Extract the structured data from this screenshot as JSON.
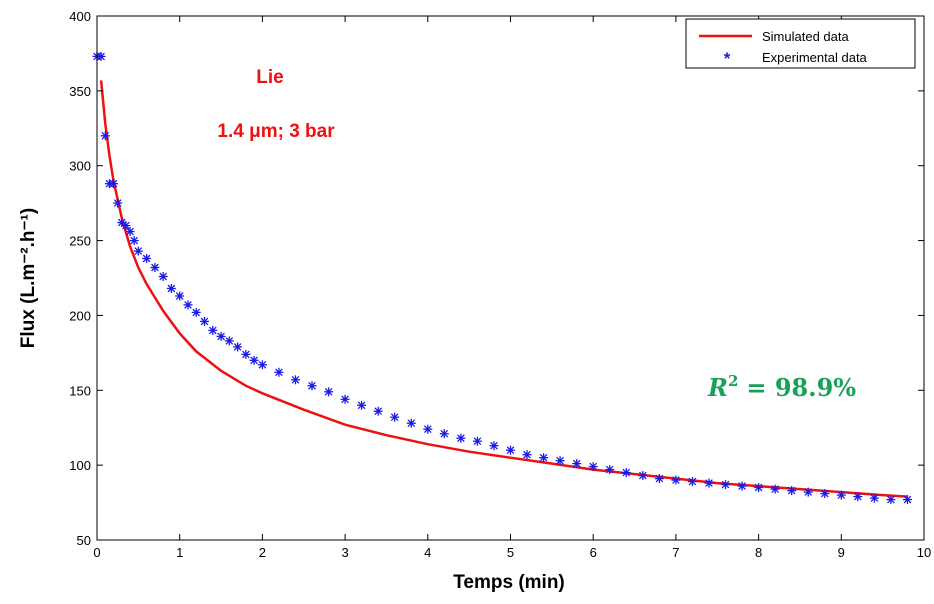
{
  "chart_data": {
    "type": "line",
    "title": "",
    "xlabel": "Temps (min)",
    "ylabel": "Flux (L.m⁻².h⁻¹)",
    "xlim": [
      0,
      10
    ],
    "ylim": [
      50,
      400
    ],
    "xticks": [
      0,
      1,
      2,
      3,
      4,
      5,
      6,
      7,
      8,
      9,
      10
    ],
    "yticks": [
      50,
      100,
      150,
      200,
      250,
      300,
      350,
      400
    ],
    "grid": false,
    "legend_position": "top-right",
    "annotations": {
      "sample": "Lie",
      "conditions": "1.4 μm; 3 bar",
      "r2_label": "R",
      "r2_exp": "2",
      "r2_value": "= 98.9%"
    },
    "colors": {
      "simulated": "#ee1111",
      "experimental": "#1a1ae6",
      "annotation": "#ee1111",
      "r2": "#1aa05a"
    },
    "series": [
      {
        "name": "Simulated data",
        "style": "line",
        "x": [
          0.05,
          0.1,
          0.15,
          0.2,
          0.3,
          0.4,
          0.5,
          0.6,
          0.8,
          1.0,
          1.2,
          1.5,
          1.8,
          2.0,
          2.5,
          3.0,
          3.5,
          4.0,
          4.5,
          5.0,
          5.5,
          6.0,
          6.5,
          7.0,
          7.5,
          8.0,
          8.5,
          9.0,
          9.5,
          9.8
        ],
        "y": [
          357,
          328,
          307,
          290,
          265,
          246,
          232,
          221,
          203,
          188,
          176,
          163,
          153,
          148,
          137,
          127,
          120,
          114,
          109,
          105,
          101,
          97,
          94,
          91,
          88,
          86,
          84,
          82,
          80,
          79
        ]
      },
      {
        "name": "Experimental data",
        "style": "markers",
        "x": [
          0.0,
          0.05,
          0.1,
          0.15,
          0.2,
          0.25,
          0.3,
          0.35,
          0.4,
          0.45,
          0.5,
          0.6,
          0.7,
          0.8,
          0.9,
          1.0,
          1.1,
          1.2,
          1.3,
          1.4,
          1.5,
          1.6,
          1.7,
          1.8,
          1.9,
          2.0,
          2.2,
          2.4,
          2.6,
          2.8,
          3.0,
          3.2,
          3.4,
          3.6,
          3.8,
          4.0,
          4.2,
          4.4,
          4.6,
          4.8,
          5.0,
          5.2,
          5.4,
          5.6,
          5.8,
          6.0,
          6.2,
          6.4,
          6.6,
          6.8,
          7.0,
          7.2,
          7.4,
          7.6,
          7.8,
          8.0,
          8.2,
          8.4,
          8.6,
          8.8,
          9.0,
          9.2,
          9.4,
          9.6,
          9.8
        ],
        "y": [
          373,
          373,
          320,
          288,
          288,
          275,
          262,
          260,
          256,
          250,
          243,
          238,
          232,
          226,
          218,
          213,
          207,
          202,
          196,
          190,
          186,
          183,
          179,
          174,
          170,
          167,
          162,
          157,
          153,
          149,
          144,
          140,
          136,
          132,
          128,
          124,
          121,
          118,
          116,
          113,
          110,
          107,
          105,
          103,
          101,
          99,
          97,
          95,
          93,
          91,
          90,
          89,
          88,
          87,
          86,
          85,
          84,
          83,
          82,
          81,
          80,
          79,
          78,
          77,
          77
        ]
      }
    ]
  }
}
